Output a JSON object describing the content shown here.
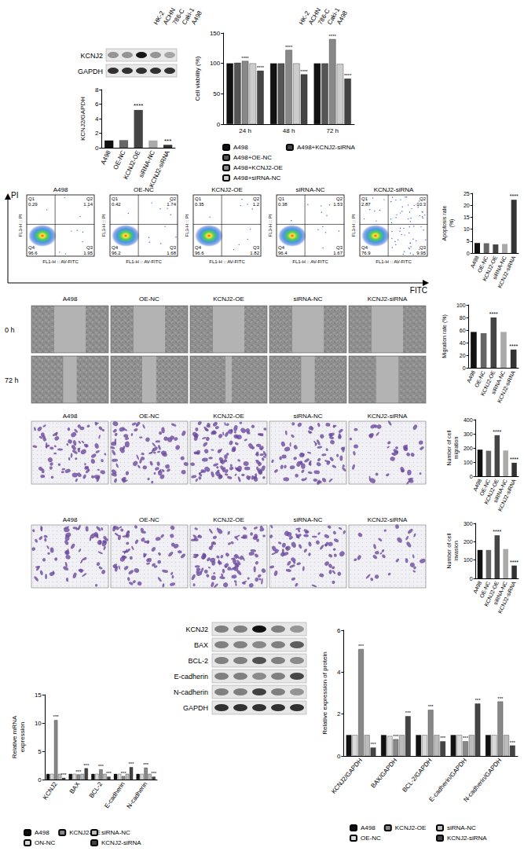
{
  "cell_lines": [
    "HK-2",
    "ACHN",
    "786-C",
    "Caki-1",
    "A498"
  ],
  "groups": [
    "A498",
    "OE-NC",
    "KCNJ2-OE",
    "siRNA-NC",
    "KCNJ2-siRNA"
  ],
  "blot_top": {
    "rows": [
      "KCNJ2",
      "GAPDH"
    ]
  },
  "flow": {
    "y_axis": "PI",
    "x_axis": "FITC",
    "panel_y_label": "FL3-H :: PI",
    "panel_x_label": "FL1-H :: AV-FITC",
    "panels": [
      {
        "title": "A498",
        "quadrants": [
          {
            "label": "Q1",
            "value": 0.29
          },
          {
            "label": "Q2",
            "value": 1.14
          },
          {
            "label": "Q3",
            "value": 1.95
          },
          {
            "label": "Q4",
            "value": 96.6
          }
        ]
      },
      {
        "title": "OE-NC",
        "quadrants": [
          {
            "label": "Q1",
            "value": 0.42
          },
          {
            "label": "Q2",
            "value": 1.74
          },
          {
            "label": "Q3",
            "value": 1.68
          },
          {
            "label": "Q4",
            "value": 96.2
          }
        ]
      },
      {
        "title": "KCNJ2-OE",
        "quadrants": [
          {
            "label": "Q1",
            "value": 0.35
          },
          {
            "label": "Q2",
            "value": 1.2
          },
          {
            "label": "Q3",
            "value": 1.82
          },
          {
            "label": "Q4",
            "value": 96.6
          }
        ]
      },
      {
        "title": "siRNA-NC",
        "quadrants": [
          {
            "label": "Q1",
            "value": 0.38
          },
          {
            "label": "Q2",
            "value": 1.53
          },
          {
            "label": "Q3",
            "value": 1.67
          },
          {
            "label": "Q4",
            "value": 96.4
          }
        ]
      },
      {
        "title": "KCNJ2-siRNA",
        "quadrants": [
          {
            "label": "Q1",
            "value": 2.87
          },
          {
            "label": "Q2",
            "value": 10.3
          },
          {
            "label": "Q3",
            "value": 9.95
          },
          {
            "label": "Q4",
            "value": 76.9
          }
        ]
      }
    ]
  },
  "wound": {
    "rows": [
      "0 h",
      "72 h"
    ]
  },
  "blot_bottom": {
    "rows": [
      "KCNJ2",
      "BAX",
      "BCL-2",
      "E-cadherin",
      "N-cadherin",
      "GAPDH"
    ]
  },
  "chart_data": [
    {
      "type": "bar",
      "ylabel": "KCNJ2/GAPDH",
      "categories": [
        "A498",
        "OE-NC",
        "KCNJ2-OE",
        "siRNA-NC",
        "KCNJ2-siRNA"
      ],
      "values": [
        1.0,
        1.05,
        5.2,
        1.0,
        0.4
      ],
      "annotations": [
        null,
        null,
        "****",
        null,
        "***"
      ],
      "colors": [
        "#111111",
        "#666666",
        "#444444",
        "#aaaaaa",
        "#333333"
      ],
      "ylim": [
        0,
        8
      ],
      "yticks": [
        0,
        2,
        4,
        6,
        8
      ],
      "grid": false
    },
    {
      "type": "bar",
      "ylabel": "Cell viability (%)",
      "categories": [
        "24 h",
        "48 h",
        "72 h"
      ],
      "series": [
        {
          "name": "A498",
          "color": "#111111",
          "values": [
            100,
            100,
            100
          ],
          "annotations": [
            null,
            null,
            null
          ]
        },
        {
          "name": "A498+OE-NC",
          "color": "#555555",
          "values": [
            101,
            100,
            100
          ],
          "annotations": [
            null,
            null,
            null
          ]
        },
        {
          "name": "A498+KCNJ2-OE",
          "color": "#888888",
          "values": [
            104,
            122,
            140
          ],
          "annotations": [
            "****",
            "****",
            "****"
          ]
        },
        {
          "name": "A498+siRNA-NC",
          "color": "#cccccc",
          "values": [
            100,
            100,
            99
          ],
          "annotations": [
            null,
            null,
            null
          ]
        },
        {
          "name": "A498+KCNJ2-siRNA",
          "color": "#444444",
          "values": [
            88,
            82,
            75
          ],
          "annotations": [
            "****",
            "****",
            "****"
          ]
        }
      ],
      "ylim": [
        0,
        150
      ],
      "yticks": [
        0,
        50,
        100,
        150
      ],
      "grid": false,
      "legend": "bottom"
    },
    {
      "type": "bar",
      "ylabel": "Apoptosis rate (%)",
      "categories": [
        "A498",
        "OE-NC",
        "KCNJ2-OE",
        "siRNA-NC",
        "KCNJ2-siRNA"
      ],
      "values": [
        4.2,
        4.1,
        3.6,
        3.8,
        22.3
      ],
      "annotations": [
        null,
        null,
        null,
        null,
        "****"
      ],
      "colors": [
        "#111111",
        "#666666",
        "#444444",
        "#aaaaaa",
        "#333333"
      ],
      "ylim": [
        0,
        25
      ],
      "yticks": [
        0,
        5,
        10,
        15,
        20,
        25
      ],
      "grid": false
    },
    {
      "type": "bar",
      "ylabel": "Migration rate (%)",
      "categories": [
        "A498",
        "OE-NC",
        "KCNJ2-OE",
        "siRNA-NC",
        "KCNJ2-siRNA"
      ],
      "values": [
        57,
        55,
        80,
        57,
        29
      ],
      "annotations": [
        null,
        null,
        "****",
        null,
        "****"
      ],
      "colors": [
        "#111111",
        "#666666",
        "#444444",
        "#aaaaaa",
        "#333333"
      ],
      "ylim": [
        0,
        100
      ],
      "yticks": [
        0,
        20,
        40,
        60,
        80,
        100
      ],
      "grid": false
    },
    {
      "type": "bar",
      "ylabel": "Number of cell migration",
      "categories": [
        "A498",
        "OE-NC",
        "KCNJ2-OE",
        "siRNA-NC",
        "KCNJ2-siRNA"
      ],
      "values": [
        188,
        180,
        290,
        182,
        95
      ],
      "annotations": [
        null,
        null,
        "****",
        null,
        "****"
      ],
      "colors": [
        "#111111",
        "#666666",
        "#444444",
        "#aaaaaa",
        "#333333"
      ],
      "ylim": [
        0,
        400
      ],
      "yticks": [
        0,
        100,
        200,
        300,
        400
      ],
      "grid": false
    },
    {
      "type": "bar",
      "ylabel": "Number of cell invasion",
      "categories": [
        "A498",
        "OE-NC",
        "KCNJ2-OE",
        "siRNA-NC",
        "KCNJ2-siRNA"
      ],
      "values": [
        155,
        155,
        235,
        160,
        70
      ],
      "annotations": [
        null,
        null,
        "****",
        null,
        "****"
      ],
      "colors": [
        "#111111",
        "#666666",
        "#444444",
        "#aaaaaa",
        "#333333"
      ],
      "ylim": [
        0,
        300
      ],
      "yticks": [
        0,
        100,
        200,
        300
      ],
      "grid": false
    },
    {
      "type": "bar",
      "ylabel": "Relative mRNA expression",
      "categories": [
        "KCNJ2",
        "BAX",
        "BCL-2",
        "E-cadherin",
        "N-cadherin"
      ],
      "series": [
        {
          "name": "A498",
          "color": "#111111",
          "values": [
            1,
            1,
            1,
            1,
            1
          ],
          "annotations": [
            null,
            null,
            null,
            null,
            null
          ]
        },
        {
          "name": "ON-NC",
          "color": "#d9d9d9",
          "values": [
            1,
            1,
            1,
            1,
            1
          ],
          "annotations": [
            null,
            null,
            null,
            null,
            null
          ]
        },
        {
          "name": "KCNJ2-OE",
          "color": "#888888",
          "values": [
            10.5,
            0.9,
            1.8,
            0.6,
            2.1
          ],
          "annotations": [
            "***",
            "***",
            "***",
            "***",
            "***"
          ]
        },
        {
          "name": "siRNA-NC",
          "color": "#bbbbbb",
          "values": [
            1,
            1,
            1,
            1,
            1
          ],
          "annotations": [
            null,
            null,
            null,
            null,
            null
          ]
        },
        {
          "name": "KCNJ2-siRNA",
          "color": "#444444",
          "values": [
            0.3,
            2.0,
            0.5,
            2.2,
            0.5
          ],
          "annotations": [
            "***",
            "***",
            "***",
            "***",
            "***"
          ]
        }
      ],
      "ylim": [
        0,
        15
      ],
      "yticks": [
        0,
        5,
        10,
        15
      ],
      "grid": false,
      "legend": "bottom"
    },
    {
      "type": "bar",
      "ylabel": "Relative expression of protein",
      "categories": [
        "KCNJ2/GAPDH",
        "BAX/GAPDH",
        "BCL-2/GAPDH",
        "E-cadherin/GAPDH",
        "N-cadherin/GAPDH"
      ],
      "series": [
        {
          "name": "A498",
          "color": "#111111",
          "values": [
            1,
            1,
            1,
            1,
            1
          ],
          "annotations": [
            null,
            null,
            null,
            null,
            null
          ]
        },
        {
          "name": "OE-NC",
          "color": "#d9d9d9",
          "values": [
            1.0,
            0.95,
            1.0,
            1.0,
            1.0
          ],
          "annotations": [
            null,
            null,
            null,
            null,
            null
          ]
        },
        {
          "name": "KCNJ2-OE",
          "color": "#888888",
          "values": [
            5.1,
            0.8,
            2.2,
            0.7,
            2.6
          ],
          "annotations": [
            "***",
            "***",
            "***",
            "***",
            "***"
          ]
        },
        {
          "name": "siRNA-NC",
          "color": "#bbbbbb",
          "values": [
            1,
            1,
            1,
            1,
            1
          ],
          "annotations": [
            null,
            null,
            null,
            null,
            null
          ]
        },
        {
          "name": "KCNJ2-siRNA",
          "color": "#444444",
          "values": [
            0.4,
            1.9,
            0.7,
            2.5,
            0.5
          ],
          "annotations": [
            "***",
            "***",
            "***",
            "***",
            "***"
          ]
        }
      ],
      "ylim": [
        0,
        6
      ],
      "yticks": [
        0,
        2,
        4,
        6
      ],
      "grid": false,
      "legend": "bottom"
    }
  ]
}
